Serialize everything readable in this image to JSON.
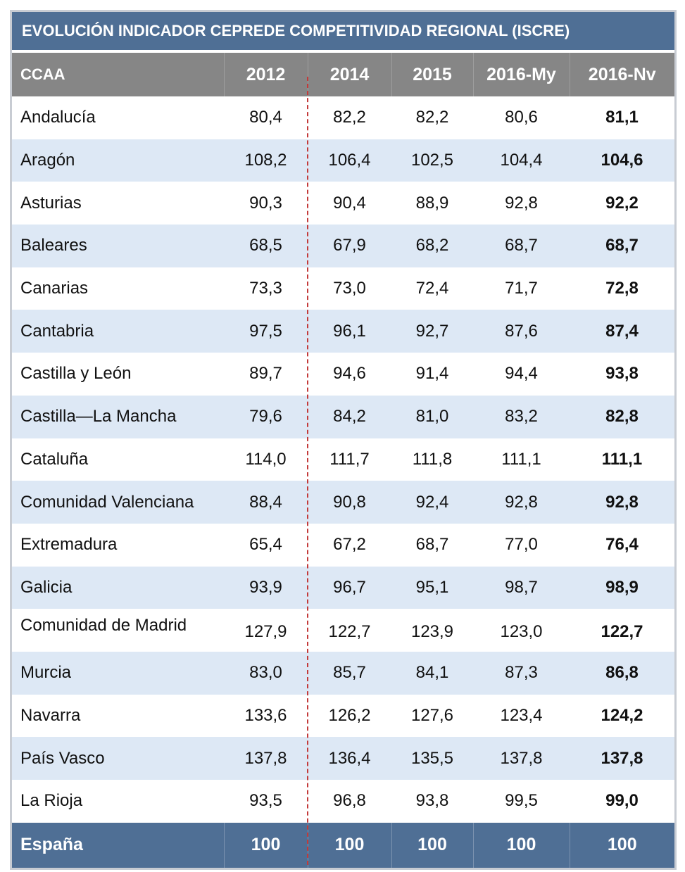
{
  "table": {
    "title": "EVOLUCIÓN INDICADOR CEPREDE COMPETITIVIDAD REGIONAL (ISCRE)",
    "headers": [
      "CCAA",
      "2012",
      "2014",
      "2015",
      "2016-My",
      "2016-Nv"
    ],
    "rows": [
      [
        "Andalucía",
        "80,4",
        "82,2",
        "82,2",
        "80,6",
        "81,1"
      ],
      [
        "Aragón",
        "108,2",
        "106,4",
        "102,5",
        "104,4",
        "104,6"
      ],
      [
        "Asturias",
        "90,3",
        "90,4",
        "88,9",
        "92,8",
        "92,2"
      ],
      [
        "Baleares",
        "68,5",
        "67,9",
        "68,2",
        "68,7",
        "68,7"
      ],
      [
        "Canarias",
        "73,3",
        "73,0",
        "72,4",
        "71,7",
        "72,8"
      ],
      [
        "Cantabria",
        "97,5",
        "96,1",
        "92,7",
        "87,6",
        "87,4"
      ],
      [
        "Castilla y León",
        "89,7",
        "94,6",
        "91,4",
        "94,4",
        "93,8"
      ],
      [
        "Castilla—La Mancha",
        "79,6",
        "84,2",
        "81,0",
        "83,2",
        "82,8"
      ],
      [
        "Cataluña",
        "114,0",
        "111,7",
        "111,8",
        "111,1",
        "111,1"
      ],
      [
        "Comunidad Valenciana",
        "88,4",
        "90,8",
        "92,4",
        "92,8",
        "92,8"
      ],
      [
        "Extremadura",
        "65,4",
        "67,2",
        "68,7",
        "77,0",
        "76,4"
      ],
      [
        "Galicia",
        "93,9",
        "96,7",
        "95,1",
        "98,7",
        "98,9"
      ],
      [
        "Comunidad de Madrid",
        "127,9",
        "122,7",
        "123,9",
        "123,0",
        "122,7"
      ],
      [
        "Murcia",
        "83,0",
        "85,7",
        "84,1",
        "87,3",
        "86,8"
      ],
      [
        "Navarra",
        "133,6",
        "126,2",
        "127,6",
        "123,4",
        "124,2"
      ],
      [
        "País Vasco",
        "137,8",
        "136,4",
        "135,5",
        "137,8",
        "137,8"
      ],
      [
        "La Rioja",
        "93,5",
        "96,8",
        "93,8",
        "99,5",
        "99,0"
      ]
    ],
    "total": [
      "España",
      "100",
      "100",
      "100",
      "100",
      "100"
    ]
  },
  "colors": {
    "title_bg": "#4f6f95",
    "header_bg": "#868686",
    "alt_row_bg": "#dde8f5",
    "divider": "#c33a3a"
  }
}
